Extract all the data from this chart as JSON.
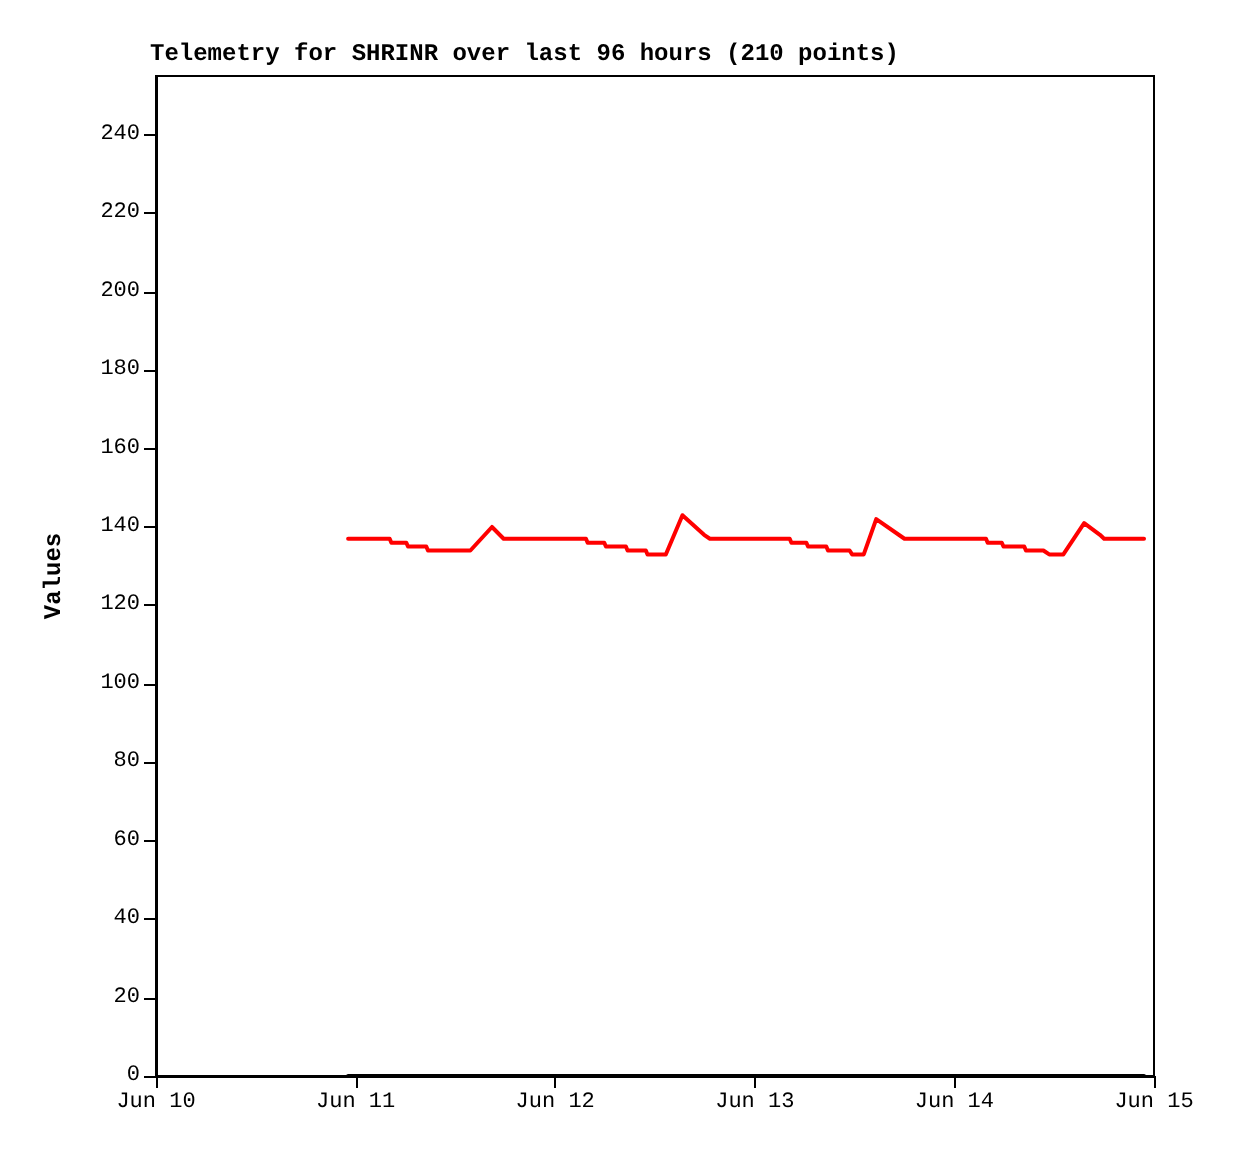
{
  "chart_data": {
    "type": "line",
    "title": "Telemetry for SHRINR over last 96 hours (210 points)",
    "ylabel": "Values",
    "xlim": [
      "--06-10",
      "--06-15"
    ],
    "xticks": [
      {
        "value": "--06-10",
        "label": "Jun 10"
      },
      {
        "value": "--06-11",
        "label": "Jun 11"
      },
      {
        "value": "--06-12",
        "label": "Jun 12"
      },
      {
        "value": "--06-13",
        "label": "Jun 13"
      },
      {
        "value": "--06-14",
        "label": "Jun 14"
      },
      {
        "value": "--06-15",
        "label": "Jun 15"
      }
    ],
    "ylim": [
      0,
      255
    ],
    "yticks": [
      0,
      20,
      40,
      60,
      80,
      100,
      120,
      140,
      160,
      180,
      200,
      220,
      240
    ],
    "grid": false,
    "marker": "none",
    "line_style": "solid",
    "series": [
      {
        "color": "#ff0000",
        "x": [
          "--06-10T23:06",
          "--06-11T04:06",
          "--06-11T04:18",
          "--06-11T06:06",
          "--06-11T06:18",
          "--06-11T08:30",
          "--06-11T08:42",
          "--06-11T13:48",
          "--06-11T16:24",
          "--06-11T17:48",
          "--06-12T03:42",
          "--06-12T03:54",
          "--06-12T05:54",
          "--06-12T06:06",
          "--06-12T08:30",
          "--06-12T08:42",
          "--06-12T10:54",
          "--06-12T11:06",
          "--06-12T13:18",
          "--06-12T15:18",
          "--06-12T17:54",
          "--06-12T18:36",
          "--06-13T04:12",
          "--06-13T04:24",
          "--06-13T06:12",
          "--06-13T06:24",
          "--06-13T08:36",
          "--06-13T08:48",
          "--06-13T11:24",
          "--06-13T11:42",
          "--06-13T13:06",
          "--06-13T14:36",
          "--06-13T18:00",
          "--06-14T03:48",
          "--06-14T04:00",
          "--06-14T05:42",
          "--06-14T05:54",
          "--06-14T08:24",
          "--06-14T08:36",
          "--06-14T10:42",
          "--06-14T11:24",
          "--06-14T13:06",
          "--06-14T15:36",
          "--06-14T17:30",
          "--06-14T18:00",
          "--06-14T22:48"
        ],
        "values": [
          137,
          137,
          136,
          136,
          135,
          135,
          134,
          134,
          140,
          137,
          137,
          136,
          136,
          135,
          135,
          134,
          134,
          133,
          133,
          143,
          138,
          137,
          137,
          136,
          136,
          135,
          135,
          134,
          134,
          133,
          133,
          142,
          137,
          137,
          136,
          136,
          135,
          135,
          134,
          134,
          133,
          133,
          141,
          138,
          137,
          137
        ]
      },
      {
        "color": "#000000",
        "x": [
          "--06-10T23:06",
          "--06-14T22:48"
        ],
        "values": [
          0,
          0
        ]
      }
    ]
  }
}
